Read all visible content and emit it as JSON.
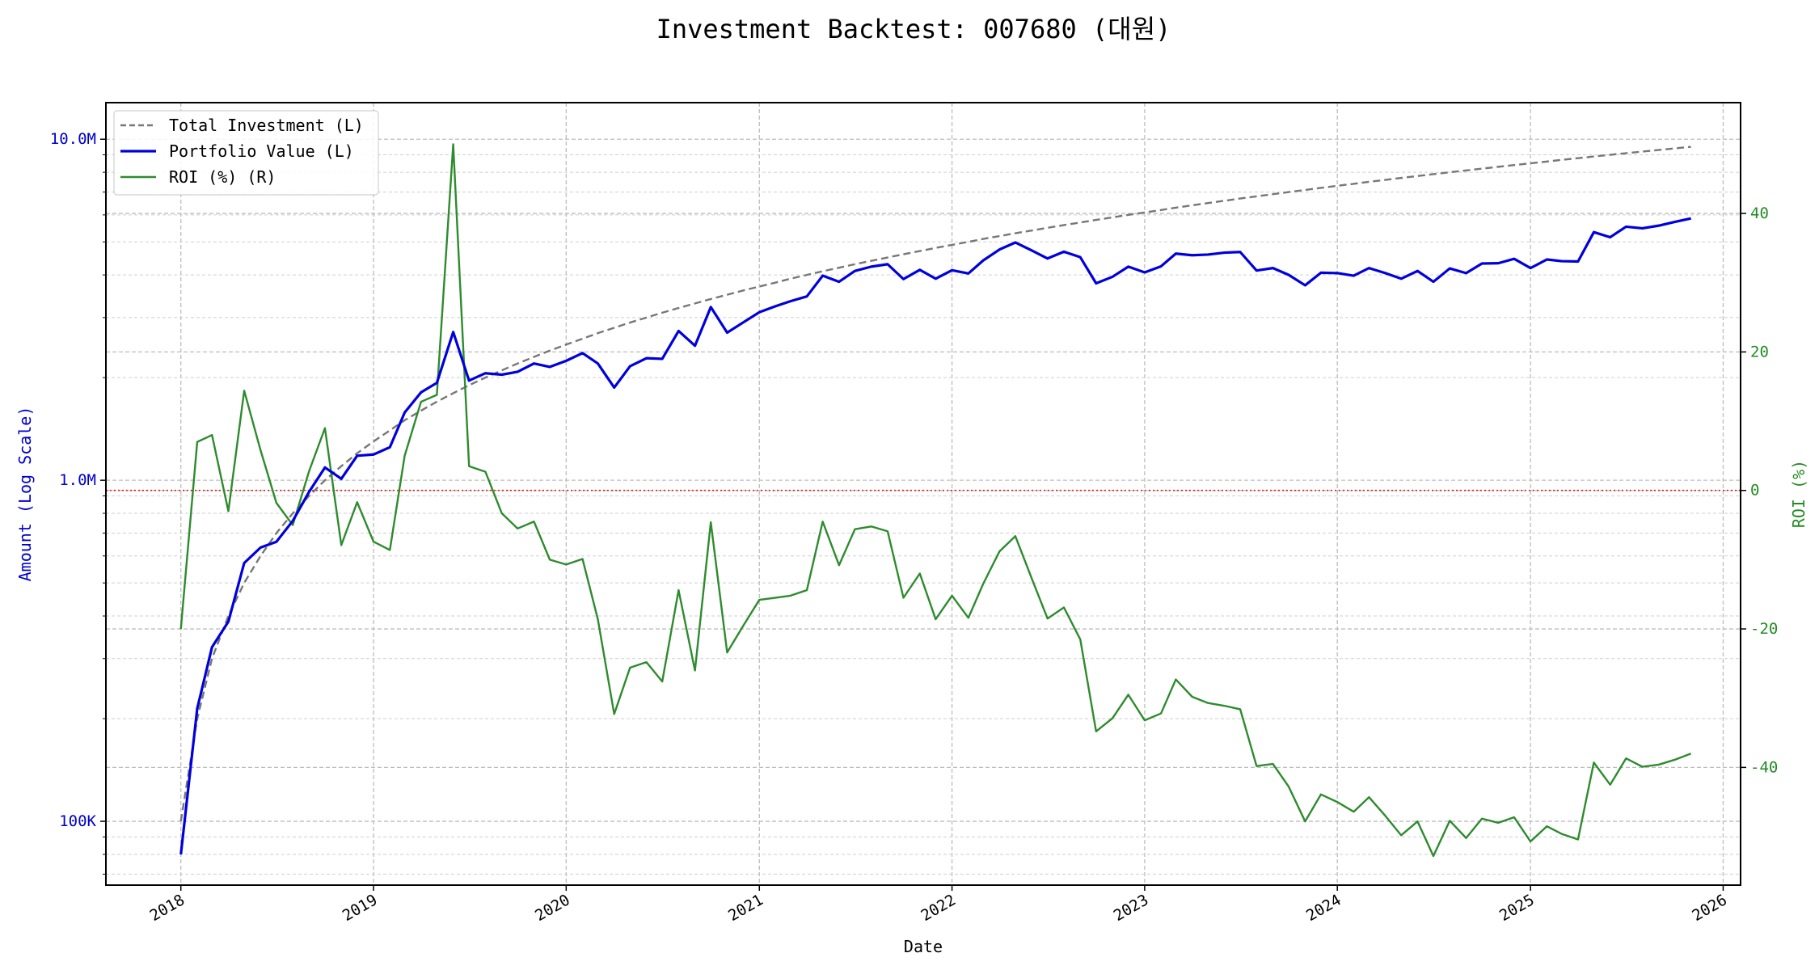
{
  "chart_data": {
    "type": "line",
    "title": "Investment Backtest: 007680 (대원)",
    "xlabel": "Date",
    "ylabel_left": "Amount (Log Scale)",
    "ylabel_right": "ROI (%)",
    "y_left_scale": "log",
    "y_left_lim": [
      65000,
      12800000
    ],
    "y_left_ticks": [
      {
        "value": 100000,
        "label": "100K"
      },
      {
        "value": 1000000,
        "label": "1.0M"
      },
      {
        "value": 10000000,
        "label": "10.0M"
      }
    ],
    "y_right_lim": [
      -57,
      56
    ],
    "y_right_ticks": [
      -40,
      -20,
      0,
      20,
      40
    ],
    "x_lim": [
      "2017-08-12",
      "2026-02-03"
    ],
    "x_ticks": [
      "2018",
      "2019",
      "2020",
      "2021",
      "2022",
      "2023",
      "2024",
      "2025",
      "2026"
    ],
    "grid": true,
    "legend_position": "top-left",
    "reference_line": {
      "axis": "right",
      "value": 0,
      "color": "#e31a1c",
      "style": "dotted"
    },
    "colors": {
      "investment": "#777777",
      "portfolio": "#0000dd",
      "roi": "#2e8b2e",
      "left_axis": "#0000cc",
      "right_axis": "#228b22"
    },
    "series": [
      {
        "name": "Total Investment (L)",
        "axis": "left",
        "style": "dashed",
        "x": [
          "2018-01",
          "2018-02",
          "2018-03",
          "2018-04",
          "2018-05",
          "2018-06",
          "2018-07",
          "2018-08",
          "2018-09",
          "2018-10",
          "2018-11",
          "2018-12",
          "2019-01",
          "2019-02",
          "2019-03",
          "2019-04",
          "2019-05",
          "2019-06",
          "2019-07",
          "2019-08",
          "2019-09",
          "2019-10",
          "2019-11",
          "2019-12",
          "2020-01",
          "2020-02",
          "2020-03",
          "2020-04",
          "2020-05",
          "2020-06",
          "2020-07",
          "2020-08",
          "2020-09",
          "2020-10",
          "2020-11",
          "2020-12",
          "2021-01",
          "2021-02",
          "2021-03",
          "2021-04",
          "2021-05",
          "2021-06",
          "2021-07",
          "2021-08",
          "2021-09",
          "2021-10",
          "2021-11",
          "2021-12",
          "2022-01",
          "2022-02",
          "2022-03",
          "2022-04",
          "2022-05",
          "2022-06",
          "2022-07",
          "2022-08",
          "2022-09",
          "2022-10",
          "2022-11",
          "2022-12",
          "2023-01",
          "2023-02",
          "2023-03",
          "2023-04",
          "2023-05",
          "2023-06",
          "2023-07",
          "2023-08",
          "2023-09",
          "2023-10",
          "2023-11",
          "2023-12",
          "2024-01",
          "2024-02",
          "2024-03",
          "2024-04",
          "2024-05",
          "2024-06",
          "2024-07",
          "2024-08",
          "2024-09",
          "2024-10",
          "2024-11",
          "2024-12",
          "2025-01",
          "2025-02",
          "2025-03",
          "2025-04",
          "2025-05",
          "2025-06",
          "2025-07",
          "2025-08",
          "2025-09",
          "2025-10",
          "2025-11"
        ],
        "values": [
          100000,
          200000,
          300000,
          400000,
          500000,
          600000,
          700000,
          800000,
          900000,
          1000000,
          1100000,
          1200000,
          1300000,
          1400000,
          1500000,
          1600000,
          1700000,
          1800000,
          1900000,
          2000000,
          2100000,
          2200000,
          2300000,
          2400000,
          2500000,
          2600000,
          2700000,
          2800000,
          2900000,
          3000000,
          3100000,
          3200000,
          3300000,
          3400000,
          3500000,
          3600000,
          3700000,
          3800000,
          3900000,
          4000000,
          4100000,
          4200000,
          4300000,
          4400000,
          4500000,
          4600000,
          4700000,
          4800000,
          4900000,
          5000000,
          5100000,
          5200000,
          5300000,
          5400000,
          5500000,
          5600000,
          5700000,
          5800000,
          5900000,
          6000000,
          6100000,
          6200000,
          6300000,
          6400000,
          6500000,
          6600000,
          6700000,
          6800000,
          6900000,
          7000000,
          7100000,
          7200000,
          7300000,
          7400000,
          7500000,
          7600000,
          7700000,
          7800000,
          7900000,
          8000000,
          8100000,
          8200000,
          8300000,
          8400000,
          8500000,
          8600000,
          8700000,
          8800000,
          8900000,
          9000000,
          9100000,
          9200000,
          9300000,
          9400000,
          9500000
        ]
      },
      {
        "name": "Portfolio Value (L)",
        "axis": "left",
        "style": "solid",
        "x": [
          "2018-01",
          "2018-02",
          "2018-03",
          "2018-04",
          "2018-05",
          "2018-06",
          "2018-07",
          "2018-08",
          "2018-09",
          "2018-10",
          "2018-11",
          "2018-12",
          "2019-01",
          "2019-02",
          "2019-03",
          "2019-04",
          "2019-05",
          "2019-06",
          "2019-07",
          "2019-08",
          "2019-09",
          "2019-10",
          "2019-11",
          "2019-12",
          "2020-01",
          "2020-02",
          "2020-03",
          "2020-04",
          "2020-05",
          "2020-06",
          "2020-07",
          "2020-08",
          "2020-09",
          "2020-10",
          "2020-11",
          "2020-12",
          "2021-01",
          "2021-02",
          "2021-03",
          "2021-04",
          "2021-05",
          "2021-06",
          "2021-07",
          "2021-08",
          "2021-09",
          "2021-10",
          "2021-11",
          "2021-12",
          "2022-01",
          "2022-02",
          "2022-03",
          "2022-04",
          "2022-05",
          "2022-06",
          "2022-07",
          "2022-08",
          "2022-09",
          "2022-10",
          "2022-11",
          "2022-12",
          "2023-01",
          "2023-02",
          "2023-03",
          "2023-04",
          "2023-05",
          "2023-06",
          "2023-07",
          "2023-08",
          "2023-09",
          "2023-10",
          "2023-11",
          "2023-12",
          "2024-01",
          "2024-02",
          "2024-03",
          "2024-04",
          "2024-05",
          "2024-06",
          "2024-07",
          "2024-08",
          "2024-09",
          "2024-10",
          "2024-11",
          "2024-12",
          "2025-01",
          "2025-02",
          "2025-03",
          "2025-04",
          "2025-05",
          "2025-06",
          "2025-07",
          "2025-08",
          "2025-09",
          "2025-10",
          "2025-11"
        ],
        "values": [
          80000,
          214000,
          324000,
          385000,
          572000,
          635000,
          660000,
          760000,
          925000,
          1090000,
          1010000,
          1180000,
          1190000,
          1250000,
          1580000,
          1810000,
          1930000,
          2720000,
          1960000,
          2060000,
          2040000,
          2080000,
          2200000,
          2150000,
          2240000,
          2360000,
          2200000,
          1870000,
          2160000,
          2280000,
          2270000,
          2740000,
          2480000,
          3220000,
          2710000,
          2900000,
          3110000,
          3240000,
          3350000,
          3460000,
          3980000,
          3820000,
          4110000,
          4230000,
          4300000,
          3890000,
          4140000,
          3900000,
          4130000,
          4040000,
          4410000,
          4750000,
          4980000,
          4720000,
          4470000,
          4680000,
          4510000,
          3780000,
          3950000,
          4230000,
          4070000,
          4240000,
          4620000,
          4570000,
          4590000,
          4650000,
          4670000,
          4120000,
          4190000,
          4000000,
          3730000,
          4060000,
          4050000,
          3980000,
          4190000,
          4050000,
          3900000,
          4110000,
          3820000,
          4180000,
          4050000,
          4320000,
          4330000,
          4460000,
          4190000,
          4440000,
          4390000,
          4380000,
          5340000,
          5160000,
          5540000,
          5480000,
          5580000,
          5720000,
          5860000
        ]
      },
      {
        "name": "ROI (%) (R)",
        "axis": "right",
        "style": "solid",
        "x": [
          "2018-01",
          "2018-02",
          "2018-03",
          "2018-04",
          "2018-05",
          "2018-06",
          "2018-07",
          "2018-08",
          "2018-09",
          "2018-10",
          "2018-11",
          "2018-12",
          "2019-01",
          "2019-02",
          "2019-03",
          "2019-04",
          "2019-05",
          "2019-06",
          "2019-07",
          "2019-08",
          "2019-09",
          "2019-10",
          "2019-11",
          "2019-12",
          "2020-01",
          "2020-02",
          "2020-03",
          "2020-04",
          "2020-05",
          "2020-06",
          "2020-07",
          "2020-08",
          "2020-09",
          "2020-10",
          "2020-11",
          "2020-12",
          "2021-01",
          "2021-02",
          "2021-03",
          "2021-04",
          "2021-05",
          "2021-06",
          "2021-07",
          "2021-08",
          "2021-09",
          "2021-10",
          "2021-11",
          "2021-12",
          "2022-01",
          "2022-02",
          "2022-03",
          "2022-04",
          "2022-05",
          "2022-06",
          "2022-07",
          "2022-08",
          "2022-09",
          "2022-10",
          "2022-11",
          "2022-12",
          "2023-01",
          "2023-02",
          "2023-03",
          "2023-04",
          "2023-05",
          "2023-06",
          "2023-07",
          "2023-08",
          "2023-09",
          "2023-10",
          "2023-11",
          "2023-12",
          "2024-01",
          "2024-02",
          "2024-03",
          "2024-04",
          "2024-05",
          "2024-06",
          "2024-07",
          "2024-08",
          "2024-09",
          "2024-10",
          "2024-11",
          "2024-12",
          "2025-01",
          "2025-02",
          "2025-03",
          "2025-04",
          "2025-05",
          "2025-06",
          "2025-07",
          "2025-08",
          "2025-09",
          "2025-10",
          "2025-11"
        ],
        "values": [
          -20.0,
          7.0,
          8.0,
          -3.0,
          14.4,
          5.8,
          -1.8,
          -5.0,
          2.8,
          9.0,
          -7.9,
          -1.7,
          -7.4,
          -8.6,
          5.0,
          12.8,
          13.8,
          50.0,
          3.5,
          2.7,
          -3.3,
          -5.5,
          -4.5,
          -10.0,
          -10.7,
          -9.9,
          -18.6,
          -32.3,
          -25.6,
          -24.8,
          -27.6,
          -14.4,
          -26.0,
          -4.6,
          -23.4,
          -19.6,
          -15.8,
          -15.5,
          -15.2,
          -14.4,
          -4.5,
          -10.8,
          -5.6,
          -5.2,
          -5.9,
          -15.5,
          -12.0,
          -18.6,
          -15.2,
          -18.4,
          -13.5,
          -8.8,
          -6.6,
          -12.7,
          -18.5,
          -16.9,
          -21.5,
          -34.8,
          -32.9,
          -29.5,
          -33.2,
          -32.2,
          -27.3,
          -29.8,
          -30.7,
          -31.1,
          -31.6,
          -39.8,
          -39.5,
          -42.8,
          -47.8,
          -43.9,
          -45.0,
          -46.4,
          -44.3,
          -47.0,
          -49.8,
          -47.8,
          -52.8,
          -47.7,
          -50.2,
          -47.4,
          -48.0,
          -47.2,
          -50.7,
          -48.5,
          -49.6,
          -50.4,
          -39.3,
          -42.5,
          -38.7,
          -39.9,
          -39.6,
          -38.9,
          -38.0
        ]
      }
    ]
  }
}
